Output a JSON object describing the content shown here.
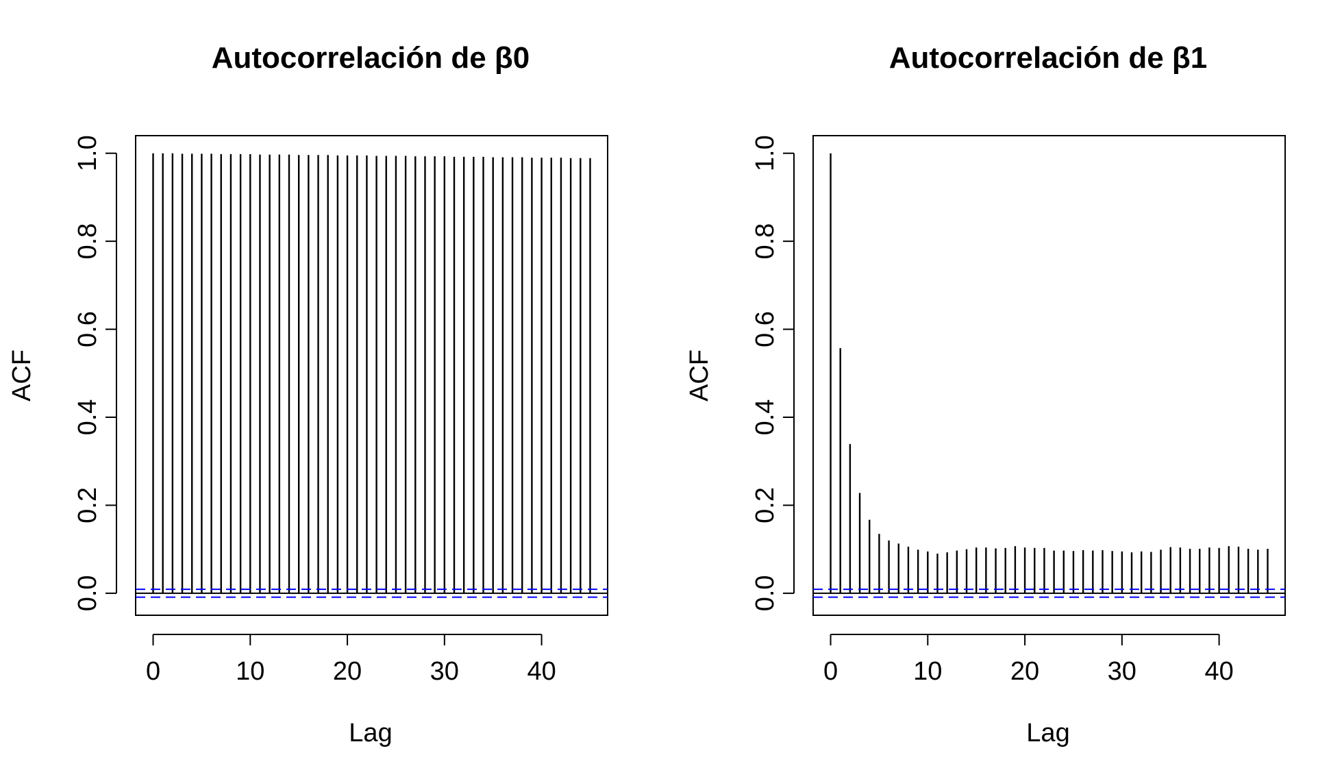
{
  "chart_data": [
    {
      "type": "bar",
      "subtype": "acf",
      "title": "Autocorrelación de β0",
      "xlabel": "Lag",
      "ylabel": "ACF",
      "xlim": [
        -1.8,
        46.8
      ],
      "ylim": [
        -0.05,
        1.04
      ],
      "xticks": [
        "0",
        "10",
        "20",
        "30",
        "40"
      ],
      "yticks": [
        "0.0",
        "0.2",
        "0.4",
        "0.6",
        "0.8",
        "1.0"
      ],
      "lags": [
        0,
        1,
        2,
        3,
        4,
        5,
        6,
        7,
        8,
        9,
        10,
        11,
        12,
        13,
        14,
        15,
        16,
        17,
        18,
        19,
        20,
        21,
        22,
        23,
        24,
        25,
        26,
        27,
        28,
        29,
        30,
        31,
        32,
        33,
        34,
        35,
        36,
        37,
        38,
        39,
        40,
        41,
        42,
        43,
        44,
        45
      ],
      "values": [
        1.0,
        1.0,
        1.0,
        0.999,
        0.999,
        0.999,
        0.999,
        0.998,
        0.998,
        0.998,
        0.998,
        0.997,
        0.997,
        0.997,
        0.997,
        0.996,
        0.996,
        0.996,
        0.996,
        0.995,
        0.995,
        0.995,
        0.995,
        0.994,
        0.994,
        0.994,
        0.994,
        0.993,
        0.993,
        0.993,
        0.993,
        0.992,
        0.992,
        0.992,
        0.992,
        0.991,
        0.991,
        0.991,
        0.991,
        0.99,
        0.99,
        0.99,
        0.99,
        0.989,
        0.989,
        0.989
      ],
      "conf_limit": 0.009,
      "conf_color": "#0000ff"
    },
    {
      "type": "bar",
      "subtype": "acf",
      "title": "Autocorrelación de β1",
      "xlabel": "Lag",
      "ylabel": "ACF",
      "xlim": [
        -1.8,
        46.8
      ],
      "ylim": [
        -0.05,
        1.04
      ],
      "xticks": [
        "0",
        "10",
        "20",
        "30",
        "40"
      ],
      "yticks": [
        "0.0",
        "0.2",
        "0.4",
        "0.6",
        "0.8",
        "1.0"
      ],
      "lags": [
        0,
        1,
        2,
        3,
        4,
        5,
        6,
        7,
        8,
        9,
        10,
        11,
        12,
        13,
        14,
        15,
        16,
        17,
        18,
        19,
        20,
        21,
        22,
        23,
        24,
        25,
        26,
        27,
        28,
        29,
        30,
        31,
        32,
        33,
        34,
        35,
        36,
        37,
        38,
        39,
        40,
        41,
        42,
        43,
        44,
        45
      ],
      "values": [
        1.0,
        0.557,
        0.339,
        0.228,
        0.167,
        0.135,
        0.12,
        0.113,
        0.106,
        0.099,
        0.095,
        0.09,
        0.093,
        0.097,
        0.1,
        0.104,
        0.104,
        0.102,
        0.103,
        0.107,
        0.104,
        0.103,
        0.103,
        0.097,
        0.097,
        0.096,
        0.098,
        0.097,
        0.098,
        0.096,
        0.095,
        0.093,
        0.095,
        0.094,
        0.099,
        0.105,
        0.104,
        0.101,
        0.101,
        0.104,
        0.103,
        0.107,
        0.106,
        0.101,
        0.099,
        0.101
      ],
      "conf_limit": 0.009,
      "conf_color": "#0000ff"
    }
  ]
}
